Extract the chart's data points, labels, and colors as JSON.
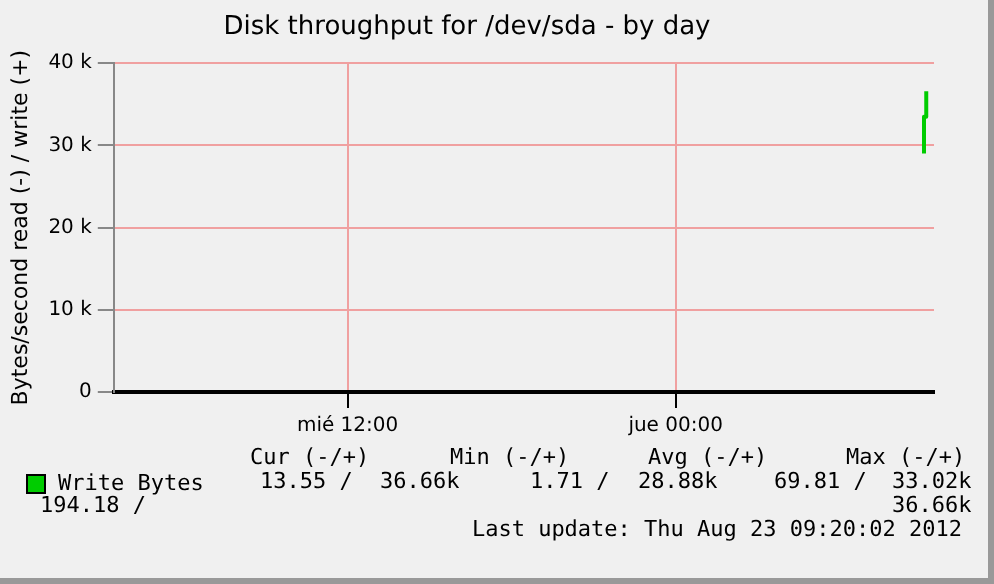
{
  "chart_data": {
    "type": "line",
    "title": "Disk throughput for /dev/sda - by day",
    "ylabel": "Bytes/second read (-) / write (+)",
    "xlim": [
      "2012-08-22T03:27",
      "2012-08-23T09:27"
    ],
    "xticks": [
      {
        "value": "2012-08-22T12:00",
        "label": "mié 12:00"
      },
      {
        "value": "2012-08-23T00:00",
        "label": "jue 00:00"
      }
    ],
    "ylim": [
      0,
      40000
    ],
    "yticks": [
      {
        "value": 0,
        "label": "0"
      },
      {
        "value": 10000,
        "label": "10 k"
      },
      {
        "value": 20000,
        "label": "20 k"
      },
      {
        "value": 30000,
        "label": "30 k"
      },
      {
        "value": 40000,
        "label": "40 k"
      }
    ],
    "grid": true,
    "legend": "bottom",
    "marker": "none",
    "line_style": "solid",
    "series": [
      {
        "name": "Write Bytes",
        "color": "#00cc00",
        "x": [
          "2012-08-23T09:05",
          "2012-08-23T09:05",
          "2012-08-23T09:10",
          "2012-08-23T09:10"
        ],
        "values": [
          29000,
          33500,
          33500,
          36600
        ]
      }
    ],
    "annotations": [
      "Cur (-/+)",
      "Min (-/+)",
      "Avg (-/+)",
      "Max (-/+)",
      "13.55 /",
      "36.66k",
      "1.71 /",
      "28.88k",
      "69.81 /",
      "33.02k",
      "194.18 /",
      "36.66k",
      "Last update: Thu Aug 23 09:20:02 2012"
    ]
  }
}
